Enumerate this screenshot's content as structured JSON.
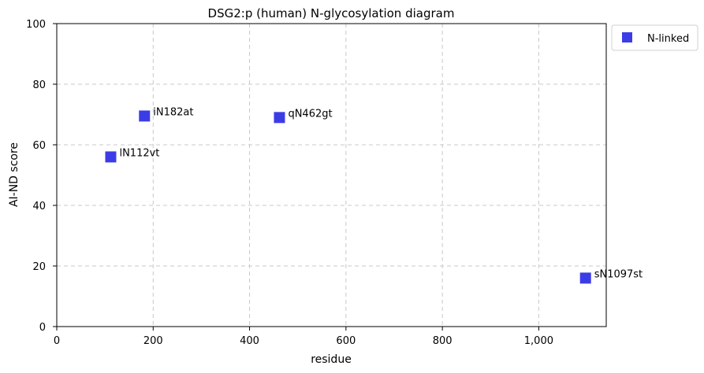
{
  "chart_data": {
    "type": "scatter",
    "title": "DSG2:p (human) N-glycosylation diagram",
    "xlabel": "residue",
    "ylabel": "AI-ND score",
    "xlim": [
      0,
      1140
    ],
    "ylim": [
      0,
      100
    ],
    "x_ticks": [
      0,
      200,
      400,
      600,
      800,
      1000
    ],
    "x_tick_labels": [
      "0",
      "200",
      "400",
      "600",
      "800",
      "1,000"
    ],
    "y_ticks": [
      0,
      20,
      40,
      60,
      80,
      100
    ],
    "y_tick_labels": [
      "0",
      "20",
      "40",
      "60",
      "80",
      "100"
    ],
    "grid": true,
    "legend_position": "outside top-right",
    "series": [
      {
        "name": "N-linked",
        "color": "#3c3ce6",
        "marker": "square",
        "points": [
          {
            "x": 112,
            "y": 56,
            "label": "lN112vt"
          },
          {
            "x": 182,
            "y": 69.5,
            "label": "iN182at"
          },
          {
            "x": 462,
            "y": 69,
            "label": "qN462gt"
          },
          {
            "x": 1097,
            "y": 16,
            "label": "sN1097st"
          }
        ]
      }
    ]
  }
}
